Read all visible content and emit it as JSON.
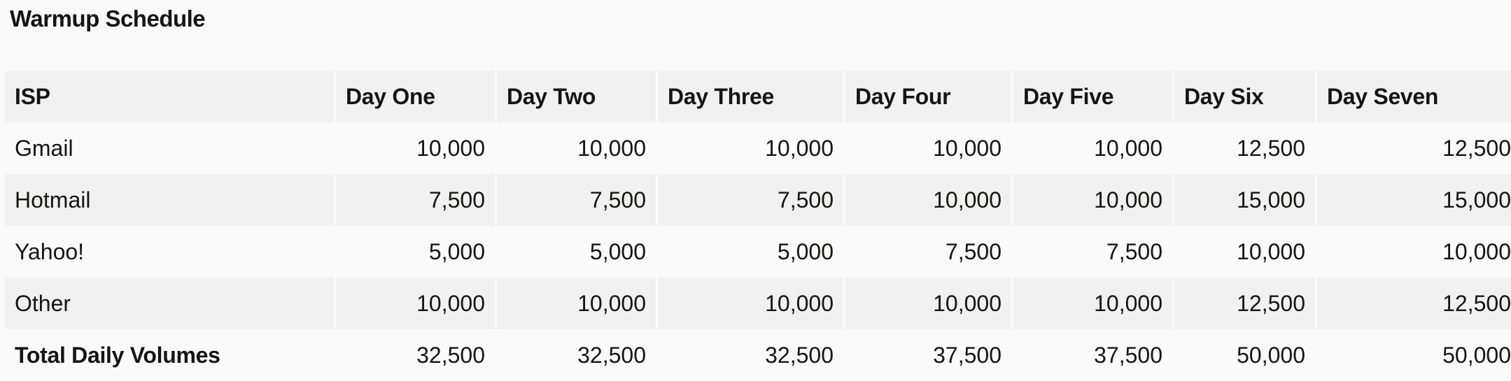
{
  "title": "Warmup Schedule",
  "table": {
    "headers": [
      "ISP",
      "Day One",
      "Day Two",
      "Day Three",
      "Day Four",
      "Day Five",
      "Day Six",
      "Day Seven"
    ],
    "rows": [
      {
        "isp": "Gmail",
        "values": [
          "10,000",
          "10,000",
          "10,000",
          "10,000",
          "10,000",
          "12,500",
          "12,500"
        ]
      },
      {
        "isp": "Hotmail",
        "values": [
          "7,500",
          "7,500",
          "7,500",
          "10,000",
          "10,000",
          "15,000",
          "15,000"
        ]
      },
      {
        "isp": "Yahoo!",
        "values": [
          "5,000",
          "5,000",
          "5,000",
          "7,500",
          "7,500",
          "10,000",
          "10,000"
        ]
      },
      {
        "isp": "Other",
        "values": [
          "10,000",
          "10,000",
          "10,000",
          "10,000",
          "10,000",
          "12,500",
          "12,500"
        ]
      }
    ],
    "total": {
      "isp": "Total Daily Volumes",
      "values": [
        "32,500",
        "32,500",
        "32,500",
        "37,500",
        "37,500",
        "50,000",
        "50,000"
      ]
    }
  }
}
